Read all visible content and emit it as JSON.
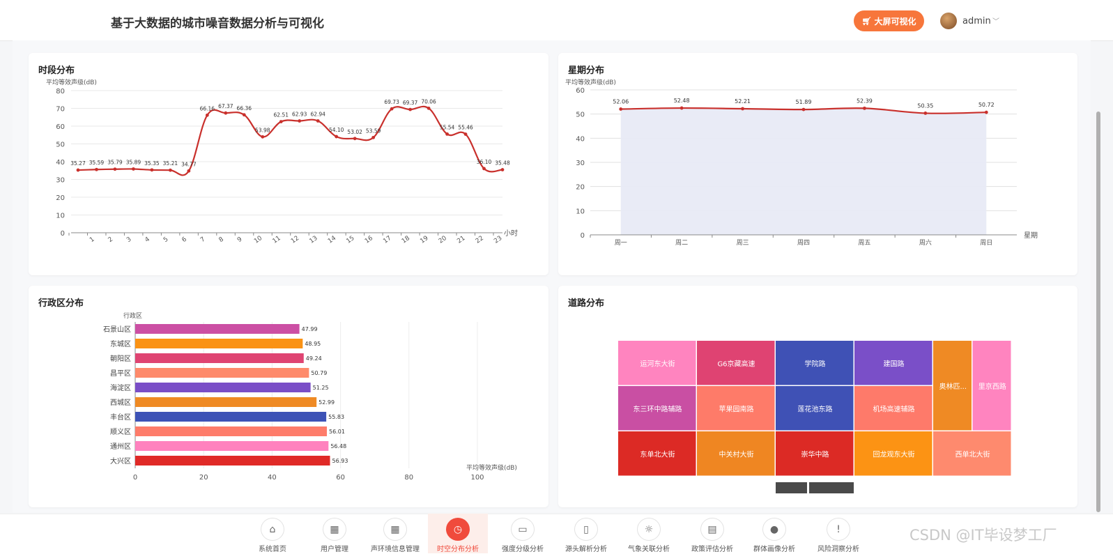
{
  "header": {
    "title": "基于大数据的城市噪音数据分析与可视化",
    "bigscreen_label": "大屏可视化",
    "username": "admin"
  },
  "cards": {
    "hourly": {
      "title": "时段分布"
    },
    "weekly": {
      "title": "星期分布"
    },
    "district": {
      "title": "行政区分布"
    },
    "road": {
      "title": "道路分布"
    }
  },
  "chart_data": [
    {
      "type": "line",
      "title": "时段分布",
      "ylabel": "平均等效声级(dB)",
      "xlabel": "小时",
      "x": [
        0,
        1,
        2,
        3,
        4,
        5,
        6,
        7,
        8,
        9,
        10,
        11,
        12,
        13,
        14,
        15,
        16,
        17,
        18,
        19,
        20,
        21,
        22,
        23
      ],
      "x_tick_labels": [
        "",
        "1",
        "2",
        "3",
        "4",
        "5",
        "6",
        "7",
        "8",
        "9",
        "10",
        "11",
        "12",
        "13",
        "14",
        "15",
        "16",
        "17",
        "18",
        "19",
        "20",
        "21",
        "22",
        "23"
      ],
      "values": [
        35.27,
        35.59,
        35.79,
        35.89,
        35.35,
        35.21,
        34.77,
        66.16,
        67.37,
        66.36,
        53.98,
        62.51,
        62.93,
        62.94,
        54.1,
        53.02,
        53.59,
        69.73,
        69.37,
        70.06,
        55.54,
        55.46,
        36.1,
        35.48
      ],
      "value_labels": [
        "35.27",
        "35.59",
        "35.79",
        "35.89",
        "35.35",
        "35.21",
        "34.77",
        "66.16",
        "67.37",
        "66.36",
        "53.98",
        "62.51",
        "62.93",
        "62.94",
        "54.10",
        "53.02",
        "53.59",
        "69.73",
        "69.37",
        "70.06",
        "55.54",
        "55.46",
        "36.10",
        "35.48"
      ],
      "ylim": [
        0,
        80
      ],
      "y_ticks": [
        0,
        10,
        20,
        30,
        40,
        50,
        60,
        70,
        80
      ],
      "smooth": true,
      "color": "#c9302c",
      "grid": true
    },
    {
      "type": "area",
      "title": "星期分布",
      "ylabel": "平均等效声级(dB)",
      "xlabel": "星期",
      "categories": [
        "周一",
        "周二",
        "周三",
        "周四",
        "周五",
        "周六",
        "周日"
      ],
      "values": [
        52.06,
        52.48,
        52.21,
        51.89,
        52.39,
        50.35,
        50.72
      ],
      "value_labels": [
        "52.06",
        "52.48",
        "52.21",
        "51.89",
        "52.39",
        "50.35",
        "50.72"
      ],
      "ylim": [
        0,
        60
      ],
      "y_ticks": [
        0,
        10,
        20,
        30,
        40,
        50,
        60
      ],
      "color": "#c9302c",
      "fill": "#e8eaf6",
      "grid": true
    },
    {
      "type": "bar",
      "orientation": "horizontal",
      "title": "行政区分布",
      "ylabel": "行政区",
      "xlabel": "平均等效声级(dB)",
      "categories": [
        "石景山区",
        "东城区",
        "朝阳区",
        "昌平区",
        "海淀区",
        "西城区",
        "丰台区",
        "顺义区",
        "通州区",
        "大兴区"
      ],
      "values": [
        47.99,
        48.95,
        49.24,
        50.79,
        51.25,
        52.99,
        55.83,
        56.01,
        56.48,
        56.93
      ],
      "value_labels": [
        "47.99",
        "48.95",
        "49.24",
        "50.79",
        "51.25",
        "52.99",
        "55.83",
        "56.01",
        "56.48",
        "56.93"
      ],
      "colors": [
        "#cc4fa4",
        "#fa9214",
        "#df4472",
        "#fe8a6b",
        "#7a4ec7",
        "#ef8a24",
        "#3d52b6",
        "#fe7c6a",
        "#ff82be",
        "#e02a27"
      ],
      "xlim": [
        0,
        100
      ],
      "x_ticks": [
        0,
        20,
        40,
        60,
        80,
        100
      ]
    },
    {
      "type": "treemap",
      "title": "道路分布",
      "rows": [
        [
          {
            "name": "运河东大街",
            "color": "#ff84bf"
          },
          {
            "name": "G6京藏高速",
            "color": "#df4372"
          },
          {
            "name": "学院路",
            "color": "#3f51b5"
          },
          {
            "name": "建国路",
            "color": "#7a4fc8"
          }
        ],
        [
          {
            "name": "东三环中路辅路",
            "color": "#c94fa3"
          },
          {
            "name": "苹果园南路",
            "color": "#fe7b69"
          },
          {
            "name": "莲花池东路",
            "color": "#3f51b5"
          },
          {
            "name": "机场高速辅路",
            "color": "#fe7a6a"
          }
        ],
        [
          {
            "name": "东单北大街",
            "color": "#dc2a25"
          },
          {
            "name": "中关村大街",
            "color": "#ef8622"
          },
          {
            "name": "崇华中路",
            "color": "#dc2a25"
          },
          {
            "name": "回龙观东大街",
            "color": "#fc9314"
          },
          {
            "name": "西单北大街",
            "color": "#fe8a6e"
          }
        ]
      ],
      "side": [
        {
          "name": "奥林匹...",
          "color": "#ef8a24"
        },
        {
          "name": "里京西路",
          "color": "#ff84bf"
        }
      ]
    }
  ],
  "nav": [
    {
      "label": "系统首页",
      "icon": "home-icon",
      "glyph": "⌂"
    },
    {
      "label": "用户管理",
      "icon": "grid-icon",
      "glyph": "▦"
    },
    {
      "label": "声环境信息管理",
      "icon": "grid-icon",
      "glyph": "▦"
    },
    {
      "label": "时空分布分析",
      "icon": "clock-icon",
      "glyph": "◷",
      "active": true
    },
    {
      "label": "强度分级分析",
      "icon": "presentation-icon",
      "glyph": "▭"
    },
    {
      "label": "源头解析分析",
      "icon": "bookmark-icon",
      "glyph": "▯"
    },
    {
      "label": "气象关联分析",
      "icon": "sun-icon",
      "glyph": "☼"
    },
    {
      "label": "政策评估分析",
      "icon": "document-icon",
      "glyph": "▤"
    },
    {
      "label": "群体画像分析",
      "icon": "user-icon",
      "glyph": "●"
    },
    {
      "label": "风险洞察分析",
      "icon": "alert-icon",
      "glyph": "!"
    }
  ],
  "watermark": "CSDN @IT毕设梦工厂"
}
